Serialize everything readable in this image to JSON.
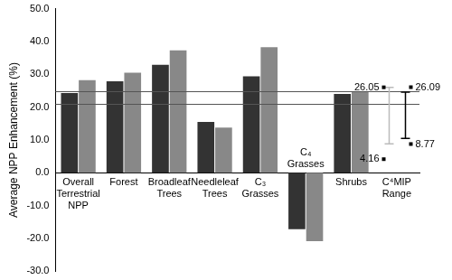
{
  "chart_data": {
    "type": "bar",
    "y_label": "Average NPP Enhancement (%)",
    "categories": [
      [
        "Overall",
        "Terrestrial",
        "NPP"
      ],
      [
        "Forest"
      ],
      [
        "Broadleaf",
        "Trees"
      ],
      [
        "Needleleaf",
        "Trees"
      ],
      [
        "C₃",
        "Grasses"
      ],
      [
        "C₄",
        "Grasses"
      ],
      [
        "Shrubs"
      ],
      [
        "C⁴MIP",
        "Range"
      ]
    ],
    "series": [
      {
        "color": "#333333",
        "values": [
          24.3,
          27.9,
          32.9,
          15.5,
          29.4,
          -17.2,
          24.0,
          null
        ]
      },
      {
        "color": "#888888",
        "values": [
          28.2,
          30.5,
          37.3,
          13.8,
          38.3,
          -20.8,
          24.8,
          null
        ]
      }
    ],
    "ylim": [
      -30,
      50
    ],
    "yticks": [
      {
        "value": -30,
        "label": "-30.0"
      },
      {
        "value": -20,
        "label": "-20.0"
      },
      {
        "value": -10,
        "label": "-10.0"
      },
      {
        "value": 0,
        "label": "0.0"
      },
      {
        "value": 10,
        "label": "10.0"
      },
      {
        "value": 20,
        "label": "20.0"
      },
      {
        "value": 30,
        "label": "30.0"
      },
      {
        "value": 40,
        "label": "40.0"
      },
      {
        "value": 50,
        "label": "50.0"
      }
    ],
    "grid": false,
    "reference_lines": [
      24.9,
      21.0
    ],
    "c4mip_range": [
      {
        "color": "#bbbbbb",
        "low": 8.8,
        "high": 26.0,
        "min": 4.16,
        "max": 26.05
      },
      {
        "color": "#000000",
        "low": 10.5,
        "high": 24.6,
        "min": 8.77,
        "max": 26.09
      }
    ]
  }
}
